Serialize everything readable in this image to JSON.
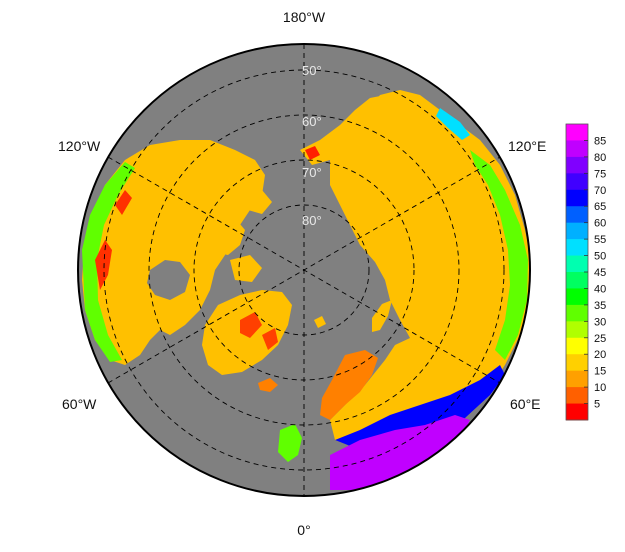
{
  "map": {
    "projection": "north polar stereographic",
    "ocean_color": "#808080",
    "longitude_labels": {
      "top": "180°W",
      "upper_left": "120°W",
      "upper_right": "120°E",
      "lower_left": "60°W",
      "lower_right": "60°E",
      "bottom": "0°"
    },
    "latitude_labels": [
      "50°",
      "60°",
      "70°",
      "80°"
    ]
  },
  "colorbar": {
    "ticks": [
      "85",
      "80",
      "75",
      "70",
      "65",
      "60",
      "55",
      "50",
      "45",
      "40",
      "35",
      "30",
      "25",
      "20",
      "15",
      "10",
      "5"
    ],
    "colors": [
      "#ff00ff",
      "#c000ff",
      "#8000ff",
      "#4000ff",
      "#0000ff",
      "#0060ff",
      "#00b0ff",
      "#00e0ff",
      "#00ffb0",
      "#00ff60",
      "#00ff00",
      "#60ff00",
      "#b0ff00",
      "#ffff00",
      "#ffd000",
      "#ffa000",
      "#ff6000",
      "#ff0000"
    ]
  }
}
